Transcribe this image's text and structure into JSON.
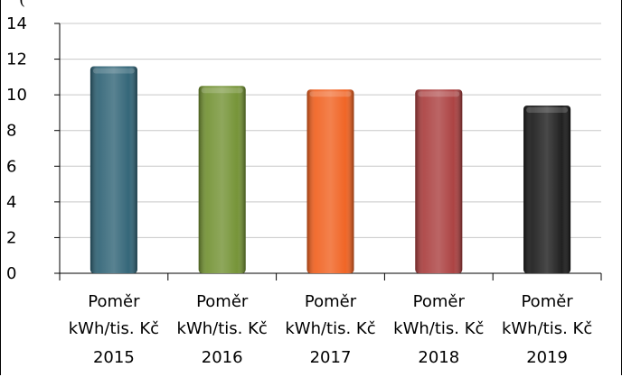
{
  "chart_data": {
    "type": "bar",
    "title": "(",
    "categories": [
      [
        "Poměr",
        "kWh/tis. Kč",
        "2015"
      ],
      [
        "Poměr",
        "kWh/tis. Kč",
        "2016"
      ],
      [
        "Poměr",
        "kWh/tis. Kč",
        "2017"
      ],
      [
        "Poměr",
        "kWh/tis. Kč",
        "2018"
      ],
      [
        "Poměr",
        "kWh/tis. Kč",
        "2019"
      ]
    ],
    "values": [
      11.6,
      10.5,
      10.3,
      10.3,
      9.4
    ],
    "colors": [
      "#2a5f72",
      "#6f8f2e",
      "#f05d1a",
      "#a83a3a",
      "#151515"
    ],
    "yticks": [
      "0",
      "2",
      "4",
      "6",
      "8",
      "10",
      "12",
      "14"
    ],
    "ylim": [
      0,
      14
    ],
    "grid": true,
    "legend": "none"
  }
}
